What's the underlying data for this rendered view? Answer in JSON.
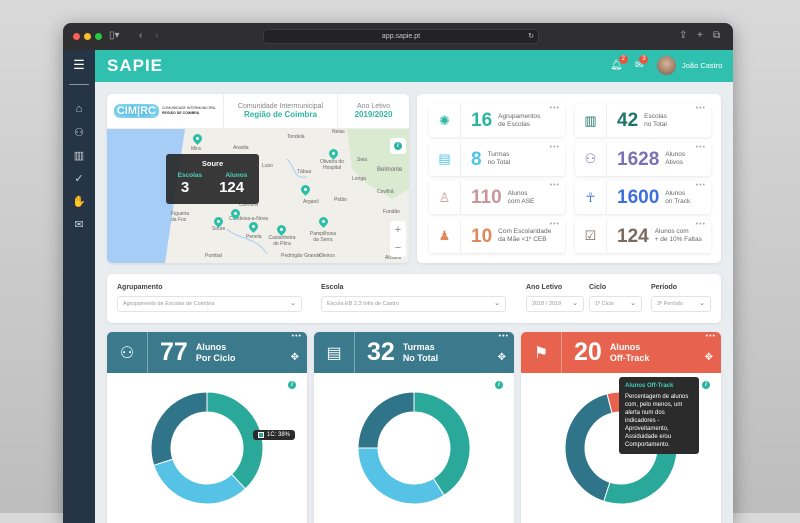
{
  "browser": {
    "url": "app.sapie.pt"
  },
  "header": {
    "logo": "SAPIE",
    "notifications": "2",
    "messages": "3",
    "user": "João Castro"
  },
  "map_card": {
    "logo_text": "CIM|RC",
    "logo_sub1": "COMUNIDADE INTERMUNICIPAL",
    "logo_sub2": "REGIÃO DE COIMBRA",
    "org_label": "Comunidade Intermunicipal",
    "org_value": "Região de Coimbra",
    "year_label": "Ano Letivo",
    "year_value": "2019/2020",
    "places": [
      "Tondela",
      "Nelas",
      "Mira",
      "Anadia",
      "Luso",
      "Tábua",
      "Oliveira do Hospital",
      "Seia",
      "Belmonte",
      "Loriga",
      "Covilhã",
      "Arganil",
      "Pidão",
      "Figueira da Foz",
      "Coimbra",
      "Condeixa-a-Nova",
      "Soure",
      "Penela",
      "Castanheira de Pêra",
      "Pampilhosa da Serra",
      "Fundão",
      "Pombal",
      "Pedrógão Grande",
      "Oleiros",
      "Alcains"
    ],
    "tooltip": {
      "title": "Soure",
      "schools_label": "Escolas",
      "schools": "3",
      "students_label": "Alunos",
      "students": "124"
    }
  },
  "stats": [
    {
      "value": "16",
      "l1": "Agrupamentos",
      "l2": "de Escolas",
      "color": "#2bb5a0",
      "icon": "network-icon"
    },
    {
      "value": "42",
      "l1": "Escolas",
      "l2": "no Total",
      "color": "#1f7568",
      "icon": "school-icon"
    },
    {
      "value": "8",
      "l1": "Turmas",
      "l2": "no Total",
      "color": "#4fc3e8",
      "icon": "classroom-icon"
    },
    {
      "value": "1628",
      "l1": "Alunos",
      "l2": "Ativos",
      "color": "#7b70b3",
      "icon": "students-icon"
    },
    {
      "value": "110",
      "l1": "Alunos",
      "l2": "com ASE",
      "color": "#c9959b",
      "icon": "parent-child-icon"
    },
    {
      "value": "1600",
      "l1": "Alunos",
      "l2": "on Track",
      "color": "#3f6fdf",
      "icon": "cheering-icon"
    },
    {
      "value": "10",
      "l1": "Com Escolaridade",
      "l2": "da Mãe <1º CEB",
      "color": "#e0885a",
      "icon": "mother-child-icon"
    },
    {
      "value": "124",
      "l1": "Alunos com",
      "l2": "+ de 10% Faltas",
      "color": "#7a6a5f",
      "icon": "checklist-icon"
    }
  ],
  "filters": [
    {
      "label": "Agrupamento",
      "value": "Agrupamento de Escolas de Coimbra"
    },
    {
      "label": "Escola",
      "value": "Escola EB 2,3 Inês de Castro"
    },
    {
      "label": "Ano Letivo",
      "value": "2018 / 2019"
    },
    {
      "label": "Ciclo",
      "value": "1º Ciclo"
    },
    {
      "label": "Período",
      "value": "3º Período"
    }
  ],
  "charts": [
    {
      "value": "77",
      "l1": "Alunos",
      "l2": "Por Ciclo",
      "header_color": "#3a7a8c",
      "tooltip": "1C: 38%"
    },
    {
      "value": "32",
      "l1": "Turmas",
      "l2": "No Total",
      "header_color": "#3a7a8c"
    },
    {
      "value": "20",
      "l1": "Alunos",
      "l2": "Off-Track",
      "header_color": "#e8634d",
      "tooltip_title": "Alunos Off-Track",
      "tooltip_text": "Percentagem de alunos com, pelo menos, um alerta num dos indicadores - Aproveitamento, Assiduidade e/ou Comportamento."
    }
  ],
  "chart_data": [
    {
      "type": "pie",
      "donut": true,
      "values": [
        38,
        32,
        30
      ],
      "colors": [
        "#2aa99a",
        "#56c2e6",
        "#2f7489"
      ]
    },
    {
      "type": "pie",
      "donut": true,
      "values": [
        41,
        34,
        25
      ],
      "colors": [
        "#2aa99a",
        "#56c2e6",
        "#2f7489"
      ]
    },
    {
      "type": "pie",
      "donut": true,
      "values": [
        55,
        41,
        4
      ],
      "colors": [
        "#2aa99a",
        "#2f7489",
        "#e8634d"
      ]
    }
  ]
}
